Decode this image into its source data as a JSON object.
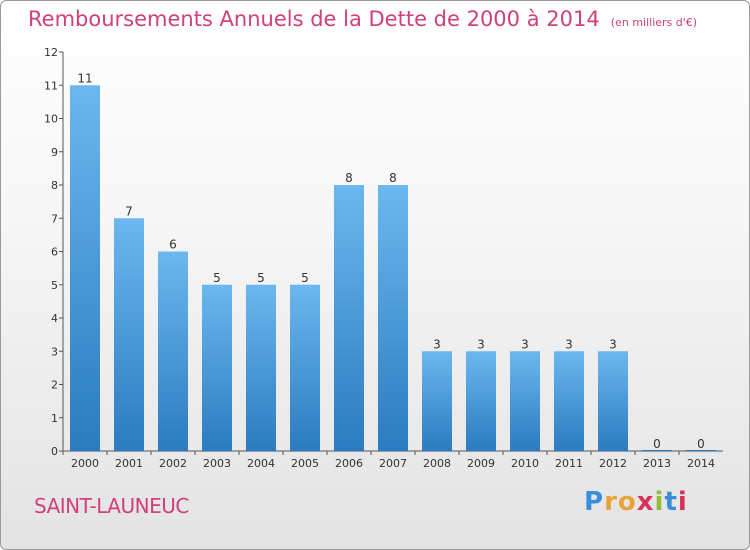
{
  "title": "Remboursements Annuels de la Dette de 2000 à 2014",
  "subtitle": "(en milliers d'€)",
  "commune": "SAINT-LAUNEUC",
  "brand": {
    "text": "Proxiti",
    "letter_colors": [
      "#3a8fd8",
      "#e8a33a",
      "#e8a33a",
      "#d7335a",
      "#8fbf3a",
      "#3a8fd8",
      "#d7335a"
    ]
  },
  "colors": {
    "bar_top": "#6bb7ef",
    "bar_bottom": "#2a7cc0",
    "title": "#d0407a",
    "axis": "#555555"
  },
  "chart_data": {
    "type": "bar",
    "categories": [
      "2000",
      "2001",
      "2002",
      "2003",
      "2004",
      "2005",
      "2006",
      "2007",
      "2008",
      "2009",
      "2010",
      "2011",
      "2012",
      "2013",
      "2014"
    ],
    "values": [
      11,
      7,
      6,
      5,
      5,
      5,
      8,
      8,
      3,
      3,
      3,
      3,
      3,
      0,
      0
    ],
    "data_labels": [
      "11",
      "7",
      "6",
      "5",
      "5",
      "5",
      "8",
      "8",
      "3",
      "3",
      "3",
      "3",
      "3",
      "0",
      "0"
    ],
    "ylim": [
      0,
      12
    ],
    "yticks": [
      "0",
      "1",
      "2",
      "3",
      "4",
      "5",
      "6",
      "7",
      "8",
      "9",
      "10",
      "11",
      "12"
    ],
    "grid": false
  }
}
